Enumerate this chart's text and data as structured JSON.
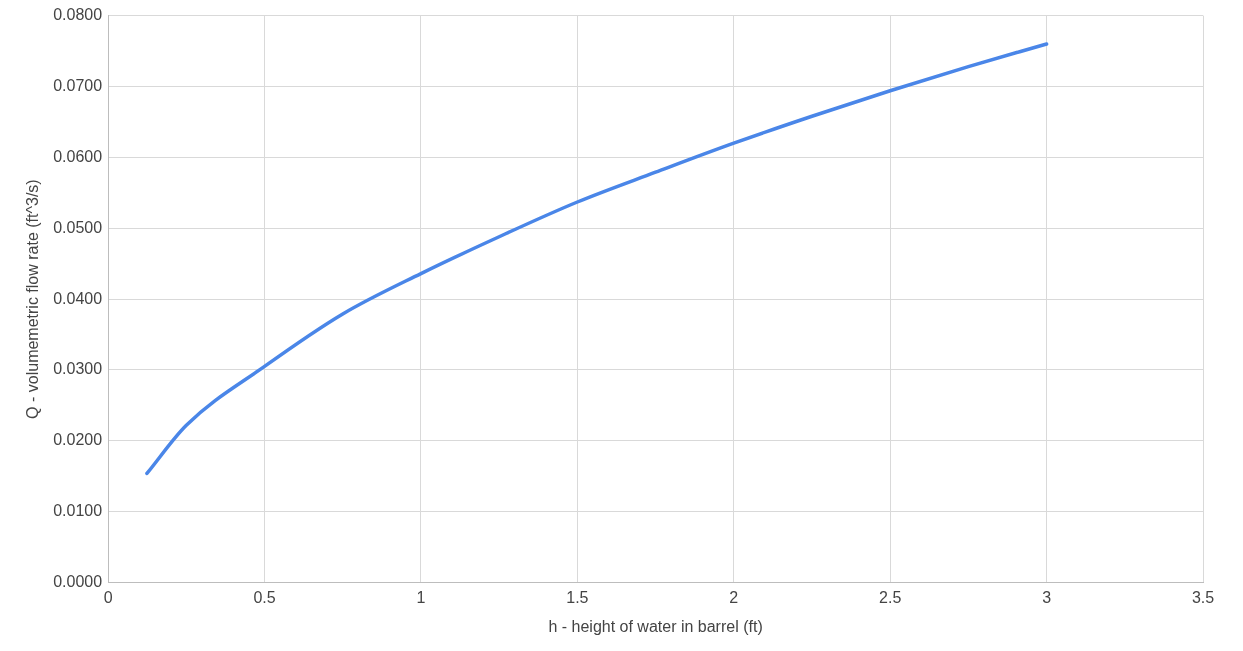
{
  "chart_data": {
    "type": "line",
    "xlabel": "h - height of water in barrel (ft)",
    "ylabel": "Q - volumemetric flow rate (ft^3/s)",
    "series": [
      {
        "color": "#4a86e8",
        "x": [
          0.124,
          0.25,
          0.5,
          0.75,
          1,
          1.25,
          1.5,
          1.75,
          2,
          2.25,
          2.5,
          2.75,
          3
        ],
        "values": [
          0.0154,
          0.0222,
          0.0305,
          0.0379,
          0.0436,
          0.0488,
          0.0537,
          0.0579,
          0.062,
          0.0658,
          0.0694,
          0.0728,
          0.076
        ]
      }
    ],
    "xlim": [
      0,
      3.5
    ],
    "xticks": [
      0,
      0.5,
      1,
      1.5,
      2,
      2.5,
      3,
      3.5
    ],
    "ylim": [
      0,
      0.08
    ],
    "yticks": [
      {
        "value": 0,
        "label": "0.0000"
      },
      {
        "value": 0.01,
        "label": "0.0100"
      },
      {
        "value": 0.02,
        "label": "0.0200"
      },
      {
        "value": 0.03,
        "label": "0.0300"
      },
      {
        "value": 0.04,
        "label": "0.0400"
      },
      {
        "value": 0.05,
        "label": "0.0500"
      },
      {
        "value": 0.06,
        "label": "0.0600"
      },
      {
        "value": 0.07,
        "label": "0.0700"
      },
      {
        "value": 0.08,
        "label": "0.0800"
      }
    ],
    "grid": true,
    "legend": false,
    "marker": "none",
    "line_style": "solid"
  }
}
